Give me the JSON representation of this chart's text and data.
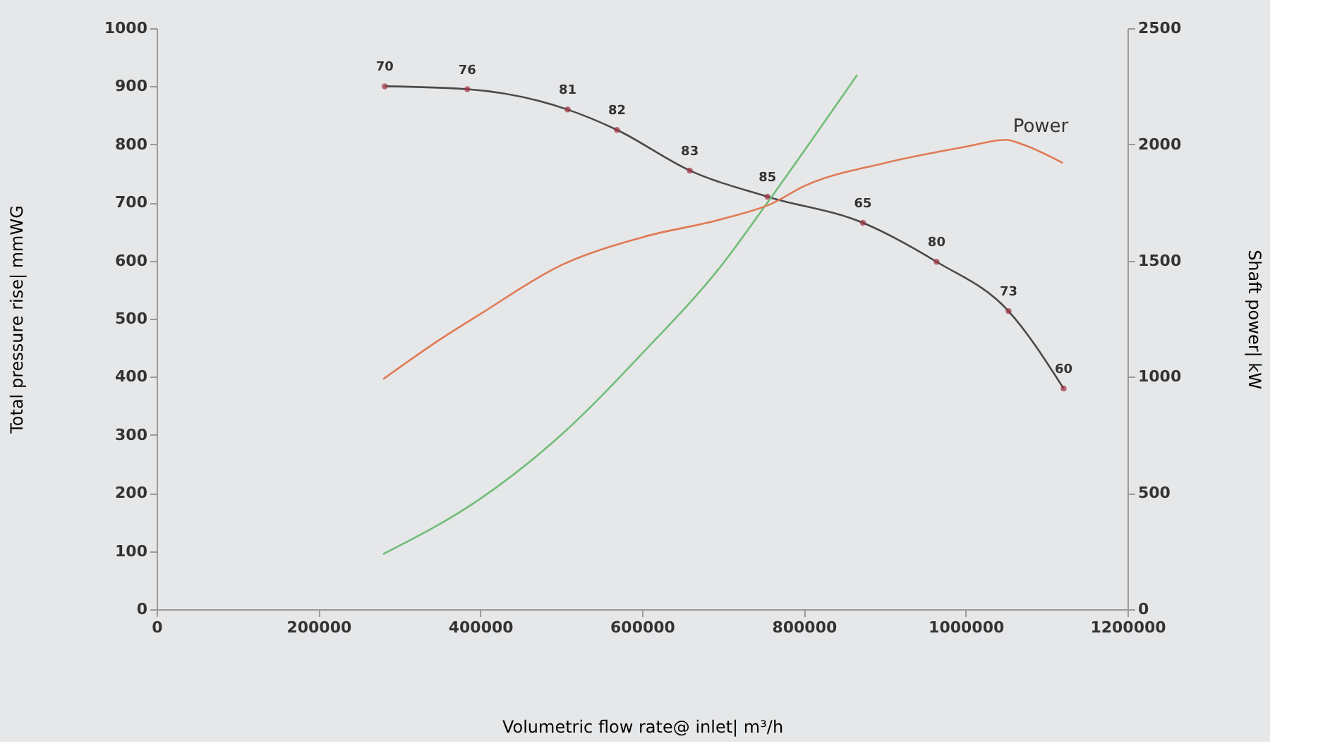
{
  "chart_data": {
    "type": "line",
    "xlabel": "Volumetric flow rate@ inlet| m³/h",
    "ylabel": "Total pressure rise| mmWG",
    "y2label": "Shaft power| kW",
    "xlim": [
      0,
      1200000
    ],
    "xticks": [
      0,
      200000,
      400000,
      600000,
      800000,
      1000000,
      1200000
    ],
    "ylim": [
      0,
      1000
    ],
    "yticks": [
      0,
      100,
      200,
      300,
      400,
      500,
      600,
      700,
      800,
      900,
      1000
    ],
    "y2lim": [
      0,
      2500
    ],
    "y2ticks": [
      0,
      500,
      1000,
      1500,
      2000,
      2500
    ],
    "grid": false,
    "line_style": "solid",
    "series": [
      {
        "color": "#4a4a4a",
        "marker": "circle",
        "x": [
          282000,
          384000,
          508000,
          569000,
          659000,
          755000,
          873000,
          964000,
          1053000,
          1121000
        ],
        "values": [
          900,
          895,
          860,
          825,
          755,
          710,
          665,
          598,
          513,
          380
        ]
      },
      {
        "name": "Power",
        "axis": "y2",
        "color": "#e07a55",
        "marker": "none",
        "x": [
          280000,
          350000,
          400000,
          500000,
          600000,
          700000,
          760000,
          800000,
          900000,
          1000000,
          1050000,
          1070000,
          1120000
        ],
        "values": [
          990,
          1160,
          1270,
          1480,
          1600,
          1680,
          1745,
          1820,
          1920,
          1990,
          2020,
          2000,
          1920
        ]
      },
      {
        "color": "#72bd78",
        "marker": "none",
        "x": [
          280000,
          400000,
          500000,
          600000,
          700000,
          755000,
          866000
        ],
        "values": [
          95,
          190,
          300,
          440,
          595,
          700,
          920
        ]
      }
    ],
    "annotations": [
      {
        "text": "70",
        "x": 282000,
        "y": 900
      },
      {
        "text": "76",
        "x": 384000,
        "y": 895
      },
      {
        "text": "81",
        "x": 508000,
        "y": 860
      },
      {
        "text": "82",
        "x": 569000,
        "y": 825
      },
      {
        "text": "83",
        "x": 659000,
        "y": 755
      },
      {
        "text": "85",
        "x": 755000,
        "y": 710
      },
      {
        "text": "65",
        "x": 873000,
        "y": 665
      },
      {
        "text": "80",
        "x": 964000,
        "y": 598
      },
      {
        "text": "73",
        "x": 1053000,
        "y": 513
      },
      {
        "text": "60",
        "x": 1121000,
        "y": 380
      }
    ]
  }
}
